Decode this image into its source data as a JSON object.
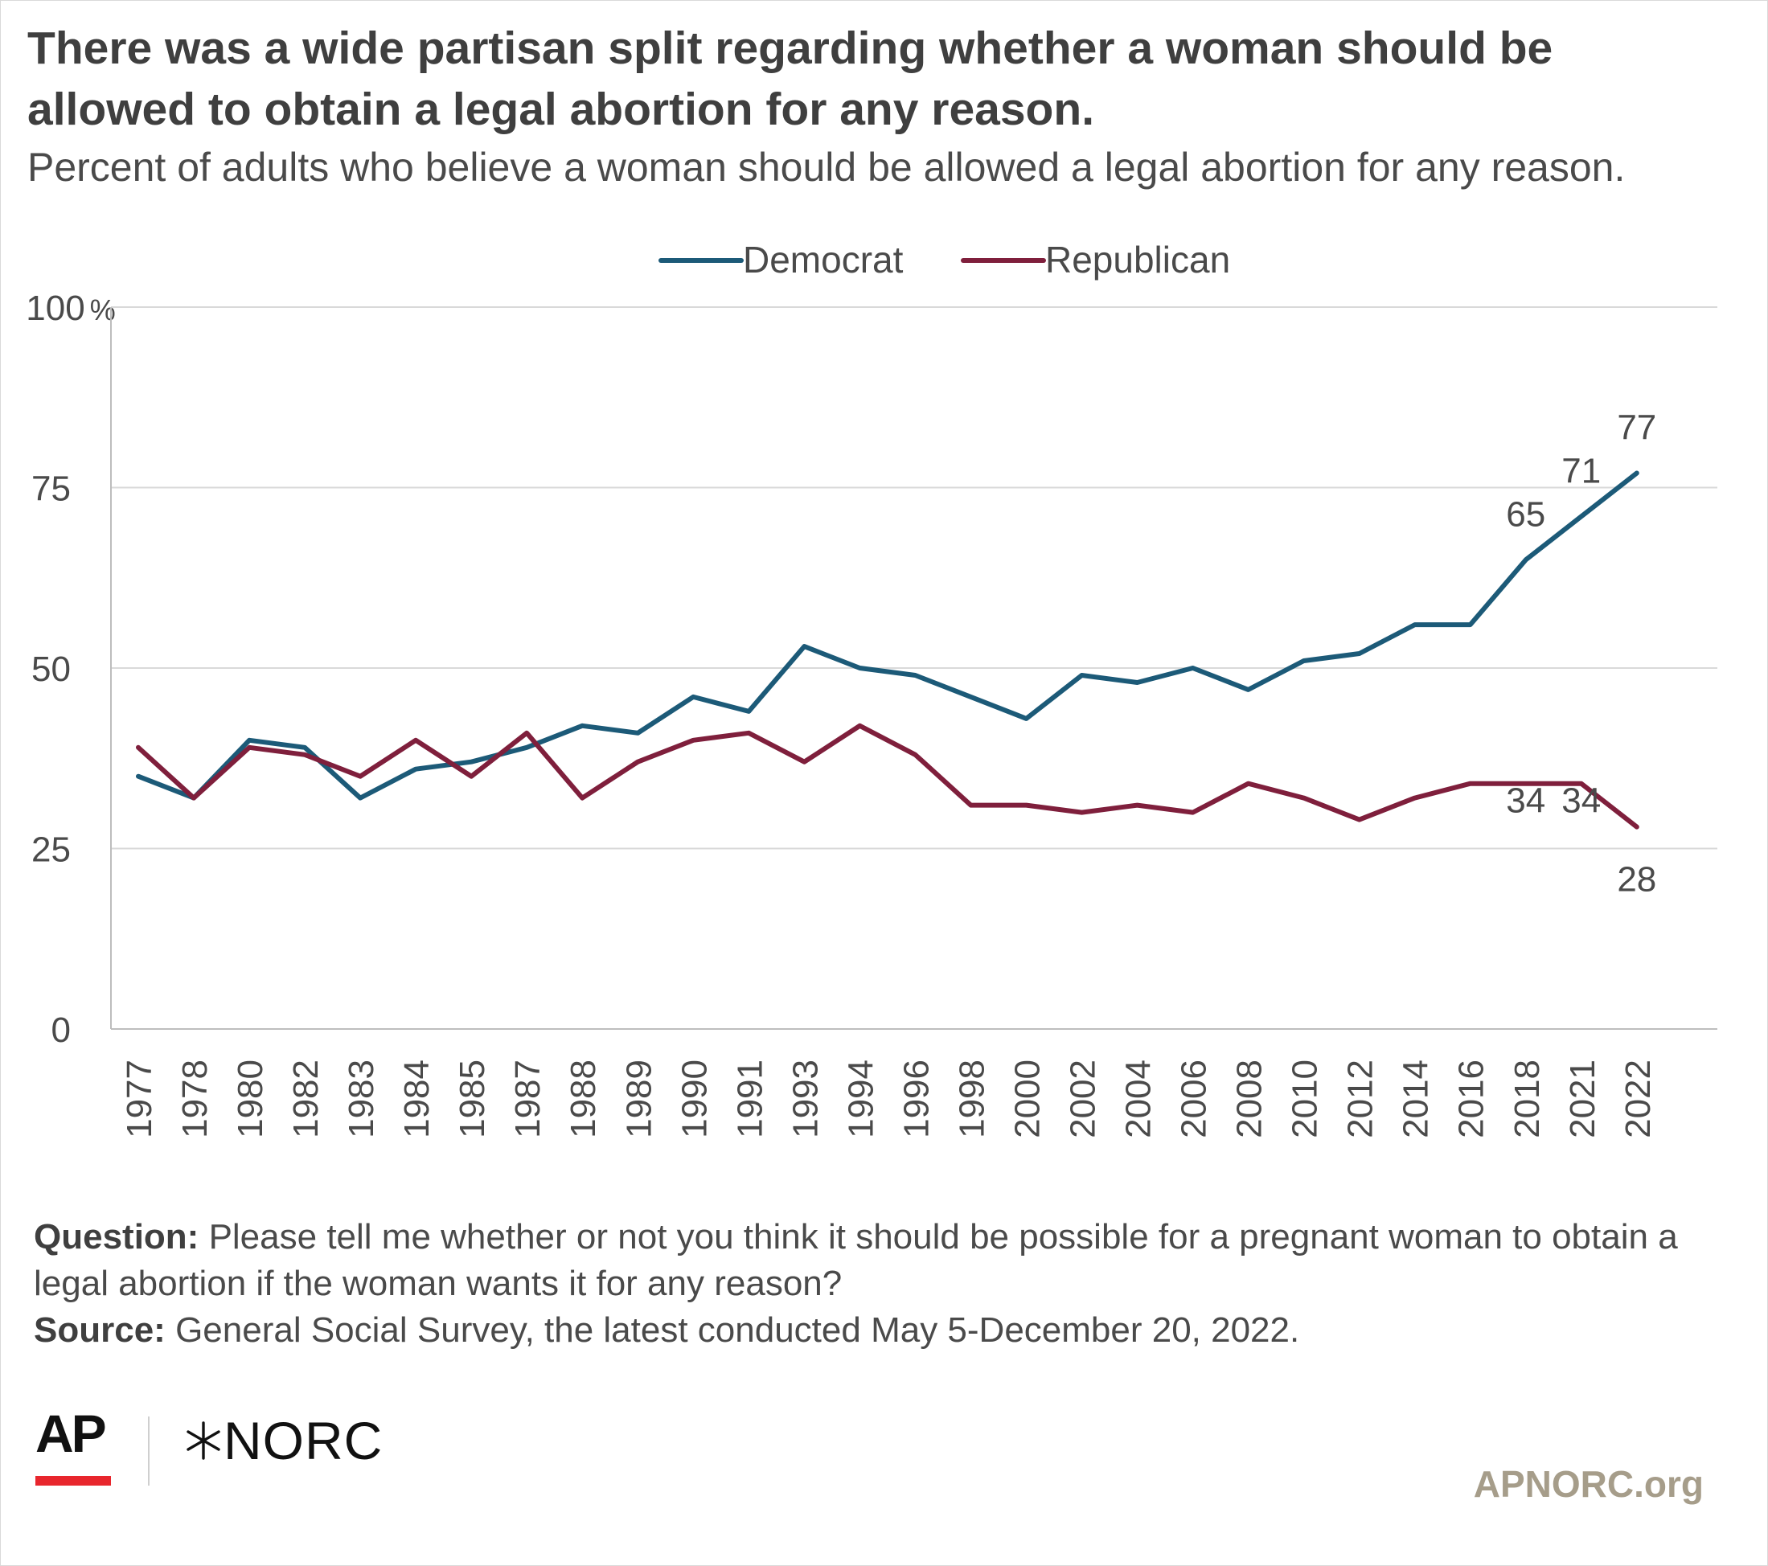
{
  "title": "There was a wide partisan split regarding whether a woman should be allowed to obtain a legal abortion for any reason.",
  "subtitle": "Percent of adults who believe a woman should be allowed a legal abortion for any reason.",
  "notes": {
    "question_label": "Question:",
    "question_text": "Please tell me whether or not you think it should be possible for a pregnant woman to obtain a legal abortion if the woman wants it for any reason?",
    "source_label": "Source:",
    "source_text": "General Social Survey, the latest conducted May 5-December 20, 2022."
  },
  "branding": {
    "ap": "AP",
    "norc": "NORC",
    "site": "APNORC.org",
    "ap_red": "#e8262d"
  },
  "chart_data": {
    "type": "line",
    "x": [
      "1977",
      "1978",
      "1980",
      "1982",
      "1983",
      "1984",
      "1985",
      "1987",
      "1988",
      "1989",
      "1990",
      "1991",
      "1993",
      "1994",
      "1996",
      "1998",
      "2000",
      "2002",
      "2004",
      "2006",
      "2008",
      "2010",
      "2012",
      "2014",
      "2016",
      "2018",
      "2021",
      "2022"
    ],
    "series": [
      {
        "name": "Democrat",
        "color": "#1c5a78",
        "values": [
          35,
          32,
          40,
          39,
          32,
          36,
          37,
          39,
          42,
          41,
          46,
          44,
          53,
          50,
          49,
          46,
          43,
          49,
          48,
          50,
          47,
          51,
          52,
          56,
          56,
          65,
          71,
          77
        ],
        "labels": [
          {
            "year": "2018",
            "text": "65"
          },
          {
            "year": "2021",
            "text": "71"
          },
          {
            "year": "2022",
            "text": "77"
          }
        ]
      },
      {
        "name": "Republican",
        "color": "#7f1f3c",
        "values": [
          39,
          32,
          39,
          38,
          35,
          40,
          35,
          41,
          32,
          37,
          40,
          41,
          37,
          42,
          38,
          31,
          31,
          30,
          31,
          30,
          34,
          32,
          29,
          32,
          34,
          34,
          34,
          28
        ],
        "labels": [
          {
            "year": "2018",
            "text": "34"
          },
          {
            "year": "2021",
            "text": "34"
          },
          {
            "year": "2022",
            "text": "28"
          }
        ]
      }
    ],
    "ylim": [
      0,
      100
    ],
    "yticks": [
      0,
      25,
      50,
      75,
      100
    ],
    "ytick_labels": [
      "0",
      "25",
      "50",
      "75",
      "100%"
    ],
    "grid": true,
    "legend": "top-center",
    "grid_color": "#d9d9d9",
    "axis_color": "#bdbdbd"
  }
}
